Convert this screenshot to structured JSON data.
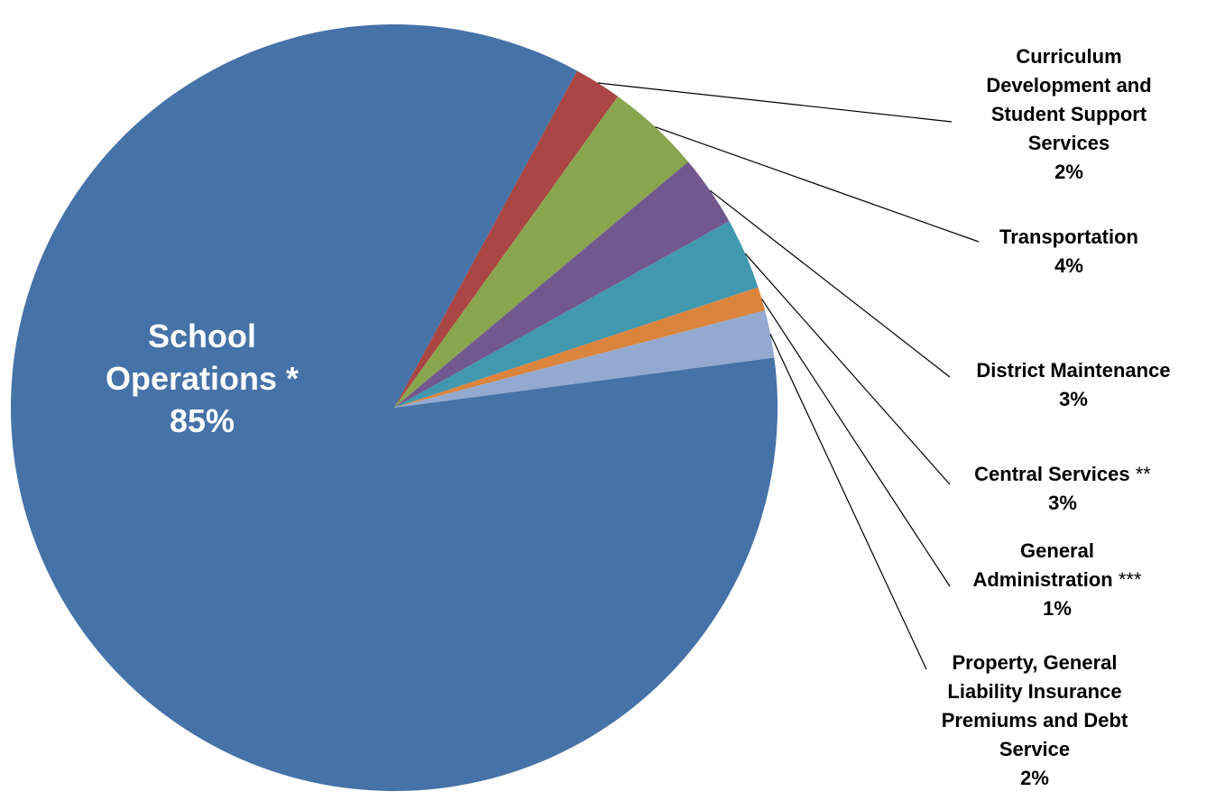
{
  "chart_data": {
    "type": "pie",
    "title": "",
    "legend": "none",
    "start_angle_deg": 61.5,
    "slices": [
      {
        "name": "Curriculum Development and Student Support Services",
        "label_lines": [
          "Curriculum",
          "Development and",
          "Student Support",
          "Services"
        ],
        "suffix": "",
        "value": 2,
        "value_label": "2%",
        "color": "#AA4643"
      },
      {
        "name": "Transportation",
        "label_lines": [
          "Transportation"
        ],
        "suffix": "",
        "value": 4,
        "value_label": "4%",
        "color": "#89A54E"
      },
      {
        "name": "District Maintenance",
        "label_lines": [
          "District Maintenance"
        ],
        "suffix": "",
        "value": 3,
        "value_label": "3%",
        "color": "#71588F"
      },
      {
        "name": "Central Services **",
        "label_lines": [
          "Central Services"
        ],
        "suffix": " **",
        "value": 3,
        "value_label": "3%",
        "color": "#4198AF"
      },
      {
        "name": "General Administration ***",
        "label_lines": [
          "General",
          "Administration"
        ],
        "suffix": " ***",
        "value": 1,
        "value_label": "1%",
        "color": "#DB843D"
      },
      {
        "name": "Property, General Liability Insurance Premiums and Debt Service",
        "label_lines": [
          "Property, General",
          "Liability Insurance",
          "Premiums and Debt",
          "Service"
        ],
        "suffix": "",
        "value": 2,
        "value_label": "2%",
        "color": "#93A9CF"
      },
      {
        "name": "School Operations *",
        "label_lines": [
          "School",
          "Operations *"
        ],
        "suffix": "",
        "value": 85,
        "value_label": "85%",
        "color": "#4572A7",
        "label_inside": true
      }
    ]
  }
}
